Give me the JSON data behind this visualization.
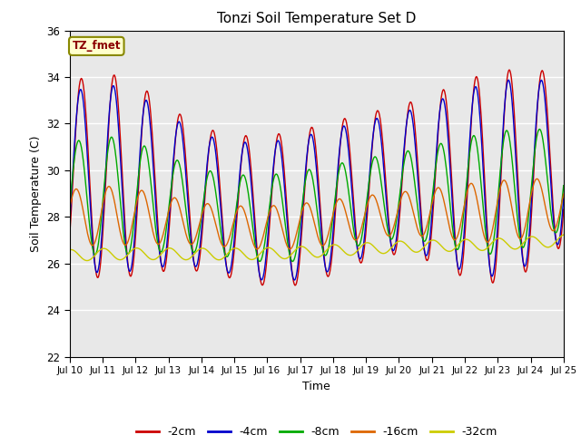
{
  "title": "Tonzi Soil Temperature Set D",
  "xlabel": "Time",
  "ylabel": "Soil Temperature (C)",
  "ylim": [
    22,
    36
  ],
  "yticks": [
    22,
    24,
    26,
    28,
    30,
    32,
    34,
    36
  ],
  "xtick_labels": [
    "Jul 10",
    "Jul 11",
    "Jul 12",
    "Jul 13",
    "Jul 14",
    "Jul 15",
    "Jul 16",
    "Jul 17",
    "Jul 18",
    "Jul 19",
    "Jul 20",
    "Jul 21",
    "Jul 22",
    "Jul 23",
    "Jul 24",
    "Jul 25"
  ],
  "label_box_text": "TZ_fmet",
  "legend": [
    "-2cm",
    "-4cm",
    "-8cm",
    "-16cm",
    "-32cm"
  ],
  "colors": [
    "#cc0000",
    "#0000cc",
    "#00aa00",
    "#dd6600",
    "#cccc00"
  ],
  "background_color": "#e8e8e8",
  "n_days": 15,
  "samples_per_day": 48
}
